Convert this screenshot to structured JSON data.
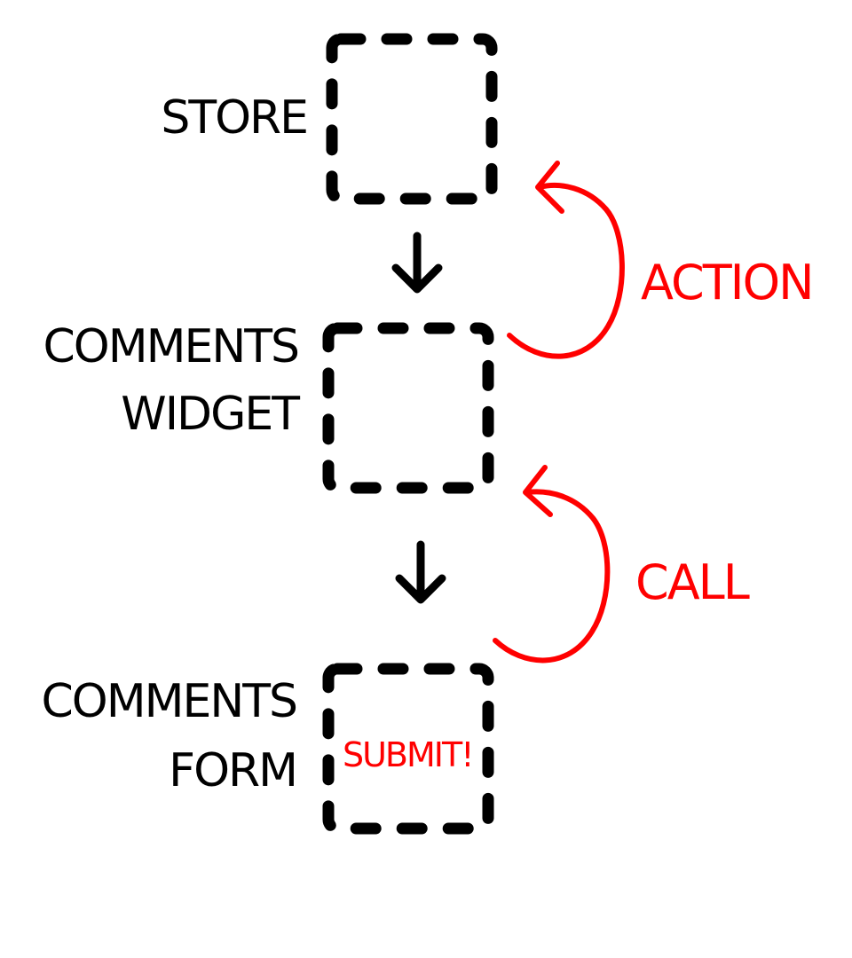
{
  "colors": {
    "ink": "#000000",
    "accent": "#ff0000",
    "background": "#ffffff"
  },
  "nodes": [
    {
      "id": "store",
      "lines": [
        "STORE"
      ]
    },
    {
      "id": "comments-widget",
      "lines": [
        "COMMENTS",
        "WIDGET"
      ]
    },
    {
      "id": "comments-form",
      "lines": [
        "COMMENTS",
        "FORM"
      ],
      "inner_label": "SUBMIT!"
    }
  ],
  "edges": {
    "action": {
      "label": "ACTION",
      "from": "comments-widget",
      "to": "store"
    },
    "call": {
      "label": "CALL",
      "from": "comments-form",
      "to": "comments-widget"
    }
  }
}
